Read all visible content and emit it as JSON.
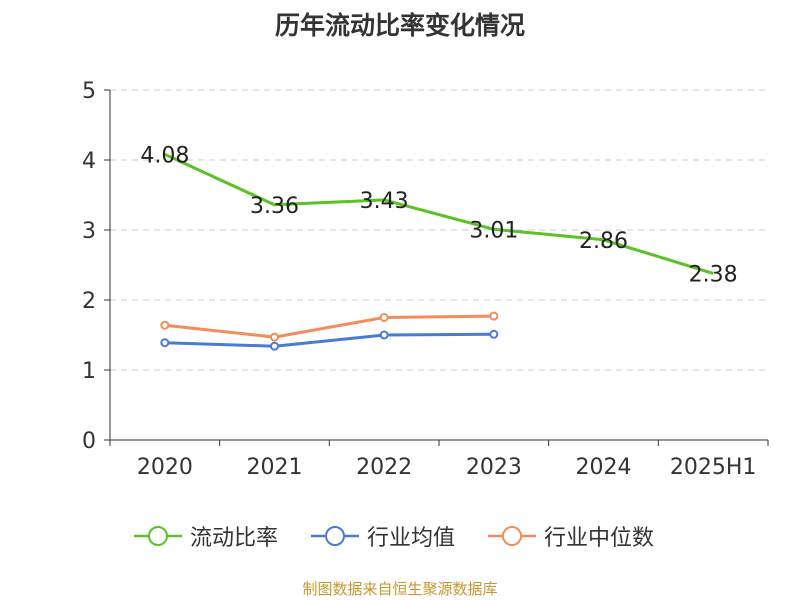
{
  "chart_data": {
    "type": "line",
    "title": "历年流动比率变化情况",
    "categories": [
      "2020",
      "2021",
      "2022",
      "2023",
      "2024",
      "2025H1"
    ],
    "ylim": [
      0,
      5
    ],
    "yticks": [
      "0",
      "1",
      "2",
      "3",
      "4",
      "5"
    ],
    "grid": true,
    "legend_position": "bottom",
    "series": [
      {
        "name": "流动比率",
        "color": "#5cc124",
        "values": [
          4.08,
          3.36,
          3.43,
          3.01,
          2.86,
          2.38
        ],
        "labels": [
          "4.08",
          "3.36",
          "3.43",
          "3.01",
          "2.86",
          "2.38"
        ]
      },
      {
        "name": "行业均值",
        "color": "#4a7bd4",
        "values": [
          1.39,
          1.34,
          1.5,
          1.51,
          null,
          null
        ]
      },
      {
        "name": "行业中位数",
        "color": "#f28c5a",
        "values": [
          1.64,
          1.47,
          1.75,
          1.77,
          null,
          null
        ]
      }
    ]
  },
  "source": "制图数据来自恒生聚源数据库"
}
